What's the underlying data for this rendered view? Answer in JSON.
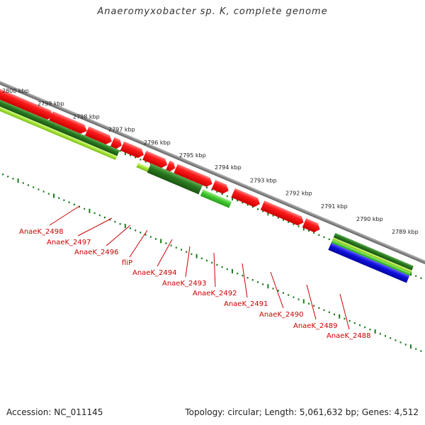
{
  "title": "Anaeromyxobacter sp. K, complete genome",
  "footer": {
    "accession": "Accession: NC_011145",
    "summary": "Topology: circular; Length: 5,061,632 bp; Genes: 4,512"
  },
  "colors": {
    "backbone": "#8a8a8a",
    "forward_gene": "#ee1111",
    "reverse_gene_dark": "#2a7a20",
    "reverse_gene_light": "#99dd33",
    "reverse_gene_mid": "#44cc33",
    "rna_feature": "#1111dd",
    "scale_ticks": "#1a7a1a",
    "gene_label": "#cc0000"
  },
  "scale_labels": [
    {
      "kbp": 2800,
      "label": "2800 kbp"
    },
    {
      "kbp": 2799,
      "label": "2799 kbp"
    },
    {
      "kbp": 2798,
      "label": "2798 kbp"
    },
    {
      "kbp": 2797,
      "label": "2797 kbp"
    },
    {
      "kbp": 2796,
      "label": "2796 kbp"
    },
    {
      "kbp": 2795,
      "label": "2795 kbp"
    },
    {
      "kbp": 2794,
      "label": "2794 kbp"
    },
    {
      "kbp": 2793,
      "label": "2793 kbp"
    },
    {
      "kbp": 2792,
      "label": "2792 kbp"
    },
    {
      "kbp": 2791,
      "label": "2791 kbp"
    },
    {
      "kbp": 2790,
      "label": "2790 kbp"
    },
    {
      "kbp": 2789,
      "label": "2789 kbp"
    }
  ],
  "gene_labels": [
    "AnaeK_2498",
    "AnaeK_2497",
    "AnaeK_2496",
    "fliP",
    "AnaeK_2494",
    "AnaeK_2493",
    "AnaeK_2492",
    "AnaeK_2491",
    "AnaeK_2490",
    "AnaeK_2489",
    "AnaeK_2488"
  ]
}
